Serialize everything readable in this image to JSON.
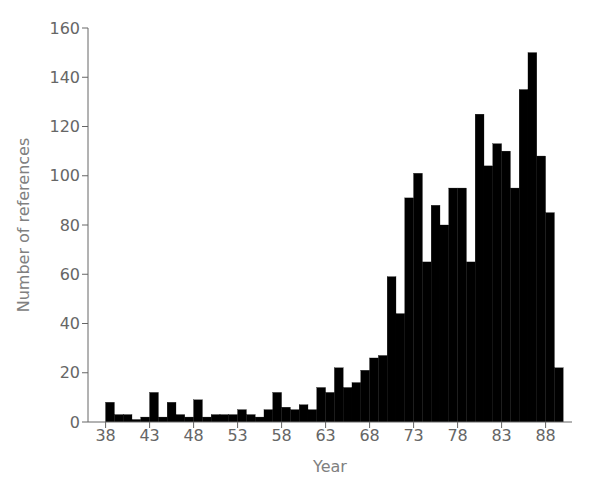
{
  "chart_data": {
    "type": "bar",
    "xlabel": "Year",
    "ylabel": "Number of references",
    "x": [
      38,
      39,
      40,
      41,
      42,
      43,
      44,
      45,
      46,
      47,
      48,
      49,
      50,
      51,
      52,
      53,
      54,
      55,
      56,
      57,
      58,
      59,
      60,
      61,
      62,
      63,
      64,
      65,
      66,
      67,
      68,
      69,
      70,
      71,
      72,
      73,
      74,
      75,
      76,
      77,
      78,
      79,
      80,
      81,
      82,
      83,
      84,
      85,
      86,
      87,
      88,
      89
    ],
    "values": [
      8,
      3,
      3,
      1,
      2,
      12,
      2,
      8,
      3,
      2,
      9,
      2,
      3,
      3,
      3,
      5,
      3,
      2,
      5,
      12,
      6,
      5,
      7,
      5,
      14,
      12,
      22,
      14,
      16,
      21,
      26,
      27,
      59,
      44,
      91,
      101,
      65,
      88,
      80,
      95,
      95,
      65,
      125,
      104,
      113,
      110,
      95,
      135,
      150,
      108,
      85,
      22
    ],
    "color": "#000000",
    "xlim": [
      36,
      91
    ],
    "ylim": [
      0,
      160
    ],
    "xticks": [
      38,
      43,
      48,
      53,
      58,
      63,
      68,
      73,
      78,
      83,
      88
    ],
    "yticks": [
      0,
      20,
      40,
      60,
      80,
      100,
      120,
      140,
      160
    ]
  }
}
